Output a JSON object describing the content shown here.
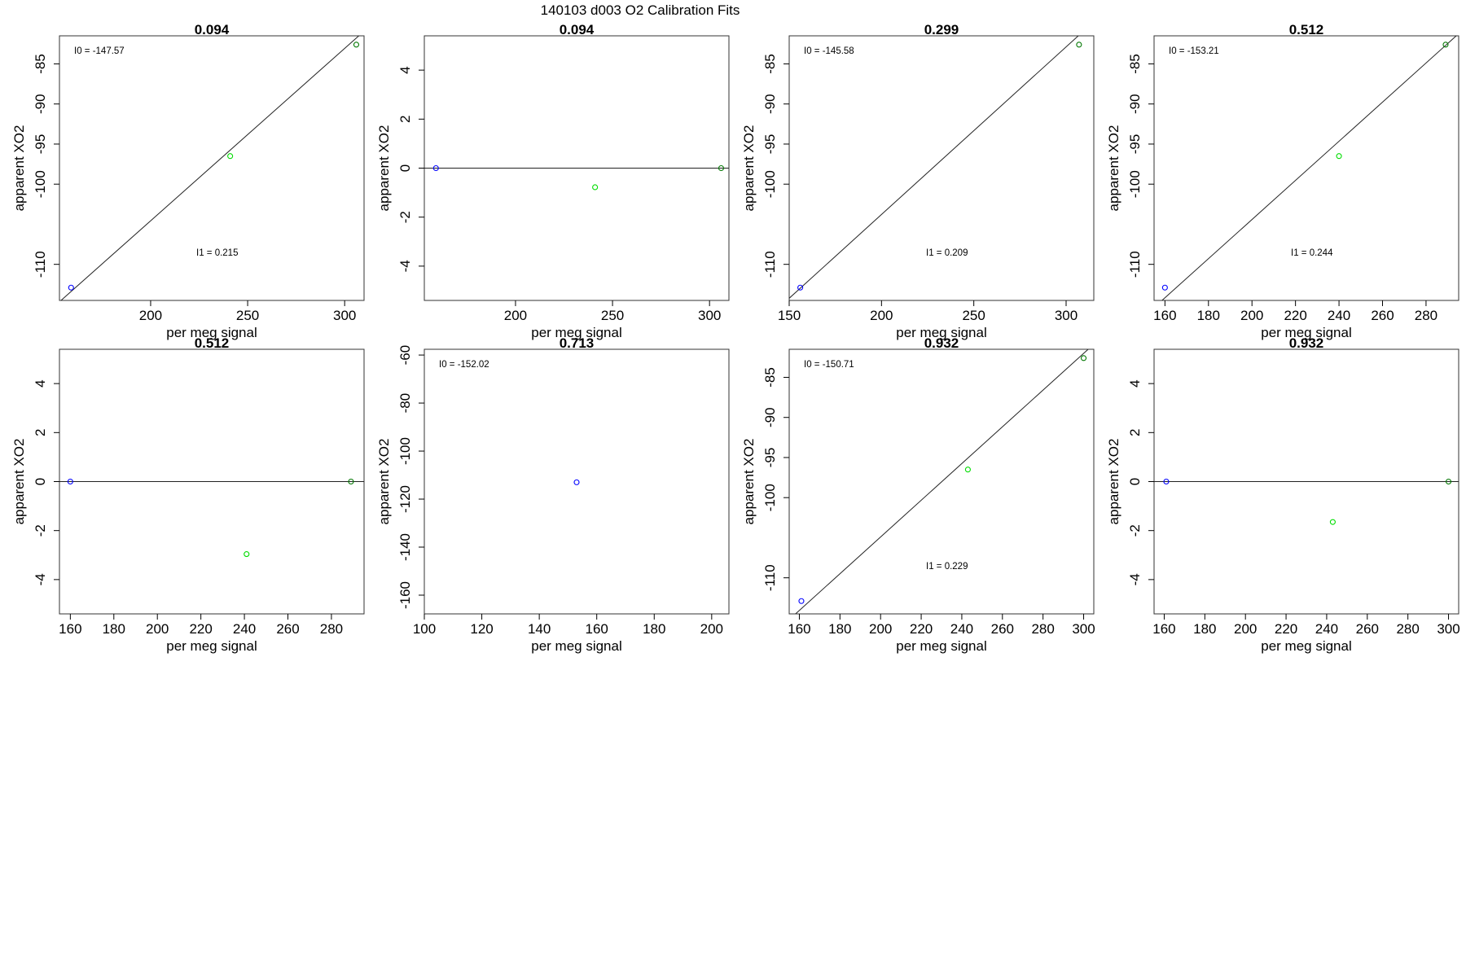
{
  "figure": {
    "title": "140103   d003   O2 Calibration Fits"
  },
  "chart_data": [
    {
      "type": "scatter",
      "title": "0.094",
      "xlabel": "per meg signal",
      "ylabel": "apparent XO2",
      "xlim": [
        153,
        310
      ],
      "ylim": [
        -114.5,
        -81.5
      ],
      "xticks": [
        200,
        250,
        300
      ],
      "yticks": [
        -85,
        -90,
        -95,
        -100,
        -110
      ],
      "series": [
        {
          "points": [
            {
              "x": 159,
              "y": -112.9,
              "color": "#0000ff"
            },
            {
              "x": 241,
              "y": -96.5,
              "color": "#00dd00"
            },
            {
              "x": 306,
              "y": -82.6,
              "color": "#007700"
            }
          ]
        }
      ],
      "fit": {
        "intercept": -147.57,
        "slope": 0.215
      },
      "coef_text": {
        "i0": "I0 =  -147.57",
        "i1": "I1 =  0.215"
      }
    },
    {
      "type": "scatter",
      "title": "0.094",
      "xlabel": "per meg signal",
      "ylabel": "apparent XO2",
      "xlim": [
        153,
        310
      ],
      "ylim": [
        -5.4,
        5.4
      ],
      "xticks": [
        200,
        250,
        300
      ],
      "yticks": [
        4,
        2,
        0,
        -2,
        -4
      ],
      "series": [
        {
          "points": [
            {
              "x": 159,
              "y": 0,
              "color": "#0000ff"
            },
            {
              "x": 241,
              "y": -0.78,
              "color": "#00dd00"
            },
            {
              "x": 306,
              "y": 0,
              "color": "#007700"
            }
          ]
        }
      ],
      "fit": {
        "intercept": 0,
        "slope": 0
      },
      "coef_text": {
        "i0": "",
        "i1": ""
      }
    },
    {
      "type": "scatter",
      "title": "0.299",
      "xlabel": "per meg signal",
      "ylabel": "apparent XO2",
      "xlim": [
        150,
        315
      ],
      "ylim": [
        -114.5,
        -81.5
      ],
      "xticks": [
        150,
        200,
        250,
        300
      ],
      "yticks": [
        -85,
        -90,
        -95,
        -100,
        -110
      ],
      "series": [
        {
          "points": [
            {
              "x": 156,
              "y": -112.9,
              "color": "#0000ff"
            },
            {
              "x": 307,
              "y": -82.6,
              "color": "#007700"
            }
          ]
        }
      ],
      "fit": {
        "intercept": -145.58,
        "slope": 0.209
      },
      "coef_text": {
        "i0": "I0 =  -145.58",
        "i1": "I1 =  0.209"
      }
    },
    {
      "type": "scatter",
      "title": "0.512",
      "xlabel": "per meg signal",
      "ylabel": "apparent XO2",
      "xlim": [
        155,
        295
      ],
      "ylim": [
        -114.5,
        -81.5
      ],
      "xticks": [
        160,
        180,
        200,
        220,
        240,
        260,
        280
      ],
      "yticks": [
        -85,
        -90,
        -95,
        -100,
        -110
      ],
      "series": [
        {
          "points": [
            {
              "x": 160,
              "y": -112.9,
              "color": "#0000ff"
            },
            {
              "x": 240,
              "y": -96.5,
              "color": "#00dd00"
            },
            {
              "x": 289,
              "y": -82.6,
              "color": "#007700"
            }
          ]
        }
      ],
      "fit": {
        "intercept": -153.21,
        "slope": 0.244
      },
      "coef_text": {
        "i0": "I0 =  -153.21",
        "i1": "I1 =  0.244"
      }
    },
    {
      "type": "scatter",
      "title": "0.512",
      "xlabel": "per meg signal",
      "ylabel": "apparent XO2",
      "xlim": [
        155,
        295
      ],
      "ylim": [
        -5.4,
        5.4
      ],
      "xticks": [
        160,
        180,
        200,
        220,
        240,
        260,
        280
      ],
      "yticks": [
        4,
        2,
        0,
        -2,
        -4
      ],
      "series": [
        {
          "points": [
            {
              "x": 160,
              "y": 0,
              "color": "#0000ff"
            },
            {
              "x": 241,
              "y": -2.96,
              "color": "#00dd00"
            },
            {
              "x": 289,
              "y": 0,
              "color": "#007700"
            }
          ]
        }
      ],
      "fit": {
        "intercept": 0,
        "slope": 0
      },
      "coef_text": {
        "i0": "",
        "i1": ""
      }
    },
    {
      "type": "scatter",
      "title": "0.713",
      "xlabel": "per meg signal",
      "ylabel": "apparent XO2",
      "xlim": [
        100,
        206
      ],
      "ylim": [
        -167.8,
        -57.6
      ],
      "xticks": [
        100,
        120,
        140,
        160,
        180,
        200
      ],
      "yticks": [
        -60,
        -80,
        -100,
        -120,
        -140,
        -160
      ],
      "series": [
        {
          "points": [
            {
              "x": 153,
              "y": -113,
              "color": "#0000ff"
            }
          ]
        }
      ],
      "fit": null,
      "coef_text": {
        "i0": "I0 =  -152.02",
        "i1": ""
      }
    },
    {
      "type": "scatter",
      "title": "0.932",
      "xlabel": "per meg signal",
      "ylabel": "apparent XO2",
      "xlim": [
        155,
        305
      ],
      "ylim": [
        -114.5,
        -81.5
      ],
      "xticks": [
        160,
        180,
        200,
        220,
        240,
        260,
        280,
        300
      ],
      "yticks": [
        -85,
        -90,
        -95,
        -100,
        -110
      ],
      "series": [
        {
          "points": [
            {
              "x": 161,
              "y": -112.9,
              "color": "#0000ff"
            },
            {
              "x": 243,
              "y": -96.5,
              "color": "#00dd00"
            },
            {
              "x": 300,
              "y": -82.6,
              "color": "#007700"
            }
          ]
        }
      ],
      "fit": {
        "intercept": -150.71,
        "slope": 0.229
      },
      "coef_text": {
        "i0": "I0 =  -150.71",
        "i1": "I1 =  0.229"
      }
    },
    {
      "type": "scatter",
      "title": "0.932",
      "xlabel": "per meg signal",
      "ylabel": "apparent XO2",
      "xlim": [
        155,
        305
      ],
      "ylim": [
        -5.4,
        5.4
      ],
      "xticks": [
        160,
        180,
        200,
        220,
        240,
        260,
        280,
        300
      ],
      "yticks": [
        4,
        2,
        0,
        -2,
        -4
      ],
      "series": [
        {
          "points": [
            {
              "x": 161,
              "y": 0,
              "color": "#0000ff"
            },
            {
              "x": 243,
              "y": -1.65,
              "color": "#00dd00"
            },
            {
              "x": 300,
              "y": 0,
              "color": "#007700"
            }
          ]
        }
      ],
      "fit": {
        "intercept": 0,
        "slope": 0
      },
      "coef_text": {
        "i0": "",
        "i1": ""
      }
    }
  ]
}
